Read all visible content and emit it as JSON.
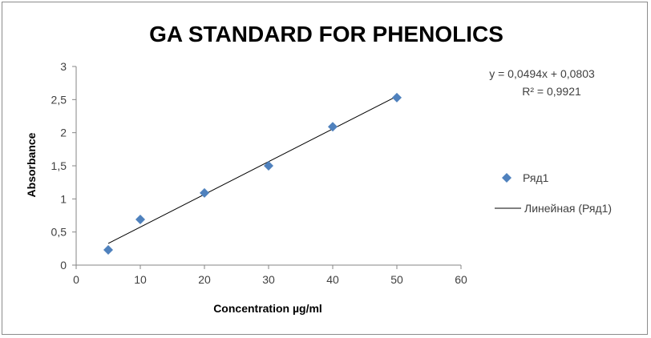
{
  "chart_data": {
    "type": "scatter",
    "title": "GA STANDARD FOR PHENOLICS",
    "xlabel": "Concentration µg/ml",
    "ylabel": "Absorbance",
    "xlim": [
      0,
      60
    ],
    "ylim": [
      0,
      3
    ],
    "x_ticks": [
      "0",
      "10",
      "20",
      "30",
      "40",
      "50",
      "60"
    ],
    "y_ticks": [
      "0",
      "0,5",
      "1",
      "1,5",
      "2",
      "2,5",
      "3"
    ],
    "grid": false,
    "legend_position": "right",
    "series": [
      {
        "name": "Ряд1",
        "color": "#4f81bd",
        "marker": "diamond",
        "x": [
          5,
          10,
          20,
          30,
          40,
          50
        ],
        "y": [
          0.23,
          0.69,
          1.09,
          1.5,
          2.09,
          2.53
        ]
      }
    ],
    "trendline": {
      "name": "Линейная (Ряд1)",
      "slope": 0.0494,
      "intercept": 0.0803,
      "x_range": [
        5,
        50
      ],
      "color": "#000000"
    },
    "equation_text": "y = 0,0494x + 0,0803",
    "r2_text": "R² = 0,9921"
  }
}
